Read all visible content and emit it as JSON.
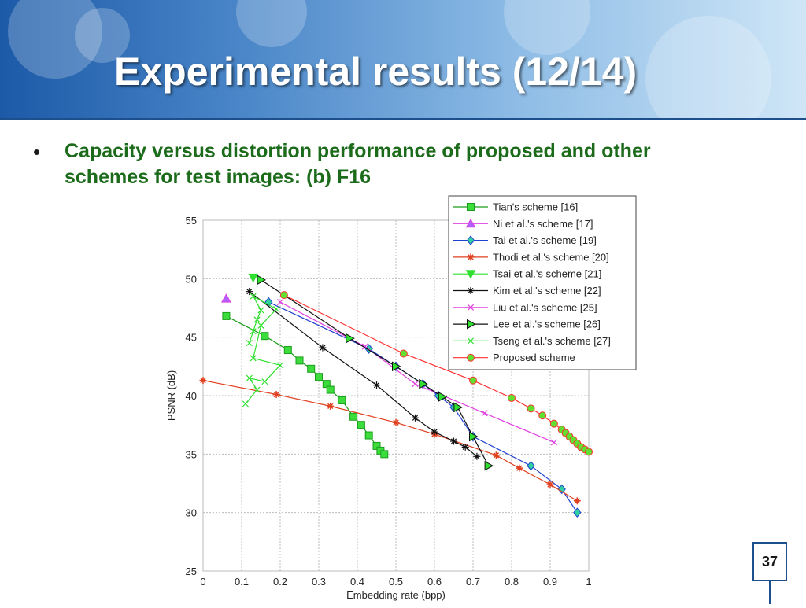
{
  "slide": {
    "title": "Experimental results (12/14)",
    "bullet": "Capacity versus distortion performance of proposed and other schemes for test images: (b) F16",
    "page_number": "37"
  },
  "colors": {
    "header": "#3b7cc4",
    "title_text": "#ffffff",
    "bullet_text": "#1b6b1b",
    "frame": "#1d4f8c"
  },
  "chart_data": {
    "type": "line",
    "xlabel": "Embedding rate (bpp)",
    "ylabel": "PSNR (dB)",
    "xlim": [
      0,
      1
    ],
    "ylim": [
      25,
      55
    ],
    "xticks": [
      "0",
      "0.1",
      "0.2",
      "0.3",
      "0.4",
      "0.5",
      "0.6",
      "0.7",
      "0.8",
      "0.9",
      "1"
    ],
    "yticks": [
      "25",
      "30",
      "35",
      "40",
      "45",
      "50",
      "55"
    ],
    "grid": true,
    "legend_position": "top-right",
    "series": [
      {
        "name": "Tian's scheme [16]",
        "color": "#1a9e1a",
        "marker": "square",
        "fill": "#3ddc3d",
        "x": [
          0.06,
          0.16,
          0.22,
          0.25,
          0.28,
          0.3,
          0.32,
          0.33,
          0.36,
          0.39,
          0.41,
          0.43,
          0.45,
          0.46,
          0.47
        ],
        "y": [
          46.8,
          45.1,
          43.9,
          43.0,
          42.3,
          41.6,
          41.0,
          40.5,
          39.6,
          38.2,
          37.5,
          36.6,
          35.7,
          35.3,
          35.0
        ]
      },
      {
        "name": "Ni et al.'s scheme [17]",
        "color": "#e040e0",
        "marker": "triangle",
        "fill": "#b060ff",
        "x": [
          0.06
        ],
        "y": [
          48.3
        ]
      },
      {
        "name": "Tai et al.'s scheme [19]",
        "color": "#2040d0",
        "marker": "diamond",
        "fill": "#30d0a0",
        "x": [
          0.17,
          0.43,
          0.5,
          0.57,
          0.61,
          0.65,
          0.7,
          0.85,
          0.93,
          0.97
        ],
        "y": [
          48.0,
          44.0,
          42.5,
          41.0,
          40.0,
          39.0,
          36.5,
          34.0,
          32.0,
          30.0
        ]
      },
      {
        "name": "Thodi et al.'s scheme [20]",
        "color": "#e04020",
        "marker": "star",
        "fill": "#c05020",
        "x": [
          0.0,
          0.19,
          0.33,
          0.5,
          0.6,
          0.76,
          0.82,
          0.9,
          0.97
        ],
        "y": [
          41.3,
          40.1,
          39.1,
          37.7,
          36.7,
          34.9,
          33.8,
          32.4,
          31.0
        ]
      },
      {
        "name": "Tsai et al.'s scheme [21]",
        "color": "#30e030",
        "marker": "triangle-down",
        "fill": "#30e030",
        "x": [
          0.13
        ],
        "y": [
          50.1
        ]
      },
      {
        "name": "Kim et al.'s scheme [22]",
        "color": "#111111",
        "marker": "asterisk",
        "fill": "#111111",
        "x": [
          0.12,
          0.31,
          0.45,
          0.55,
          0.6,
          0.65,
          0.68,
          0.71
        ],
        "y": [
          48.9,
          44.1,
          40.9,
          38.1,
          36.9,
          36.1,
          35.6,
          34.8
        ]
      },
      {
        "name": "Liu et al.'s scheme [25]",
        "color": "#e040e0",
        "marker": "x",
        "fill": "#e040e0",
        "x": [
          0.2,
          0.42,
          0.55,
          0.73,
          0.91
        ],
        "y": [
          48.0,
          44.2,
          41.0,
          38.5,
          36.0
        ]
      },
      {
        "name": "Lee et al.'s scheme [26]",
        "color": "#111111",
        "marker": "triangle-right",
        "fill": "#30e030",
        "x": [
          0.15,
          0.38,
          0.5,
          0.57,
          0.62,
          0.66,
          0.7,
          0.74
        ],
        "y": [
          49.9,
          44.9,
          42.5,
          41.0,
          39.9,
          39.0,
          36.5,
          34.0
        ]
      },
      {
        "name": "Tseng et al.'s scheme [27]",
        "color": "#30e030",
        "marker": "x",
        "fill": "#30e030",
        "x": [
          0.12,
          0.13,
          0.14,
          0.15,
          0.13,
          0.19,
          0.15,
          0.13,
          0.2,
          0.16,
          0.12,
          0.14,
          0.11
        ],
        "y": [
          44.5,
          45.5,
          46.5,
          47.3,
          48.5,
          47.4,
          46.0,
          43.2,
          42.6,
          41.2,
          41.5,
          40.5,
          39.3
        ]
      },
      {
        "name": "Proposed scheme",
        "color": "#ff3030",
        "marker": "circle",
        "fill": "#60e030",
        "x": [
          0.21,
          0.52,
          0.7,
          0.8,
          0.85,
          0.88,
          0.91,
          0.93,
          0.94,
          0.95,
          0.96,
          0.97,
          0.98,
          0.99,
          1.0
        ],
        "y": [
          48.6,
          43.6,
          41.3,
          39.8,
          38.9,
          38.3,
          37.6,
          37.1,
          36.8,
          36.5,
          36.2,
          35.9,
          35.6,
          35.4,
          35.2
        ]
      }
    ]
  }
}
